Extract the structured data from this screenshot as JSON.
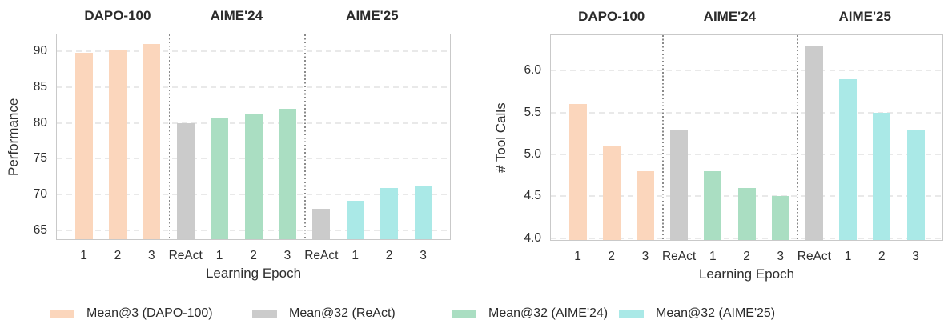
{
  "series_colors": {
    "dapo": "#fbd6bc",
    "react": "#cbcbcb",
    "aime24": "#aadec2",
    "aime25": "#aae9e7"
  },
  "legend": {
    "items": [
      {
        "label": "Mean@3 (DAPO-100)",
        "series": "dapo"
      },
      {
        "label": "Mean@32 (ReAct)",
        "series": "react"
      },
      {
        "label": "Mean@32 (AIME'24)",
        "series": "aime24"
      },
      {
        "label": "Mean@32 (AIME'25)",
        "series": "aime25"
      }
    ]
  },
  "chart_data": [
    {
      "type": "bar",
      "ylabel": "Performance",
      "xlabel": "Learning Epoch",
      "ylim": [
        63.8,
        92.3
      ],
      "ytick_values": [
        65,
        70,
        75,
        80,
        85,
        90
      ],
      "ytick_labels": [
        "65",
        "70",
        "75",
        "80",
        "85",
        "90"
      ],
      "grid": "horizontal-dashed",
      "legend_position": "bottom",
      "groups": [
        {
          "title": "DAPO-100"
        },
        {
          "title": "AIME'24"
        },
        {
          "title": "AIME'25"
        }
      ],
      "separators_after_slot": [
        2,
        6
      ],
      "bars": [
        {
          "group": 0,
          "label": "1",
          "series": "dapo",
          "value": 89.7
        },
        {
          "group": 0,
          "label": "2",
          "series": "dapo",
          "value": 90.1
        },
        {
          "group": 0,
          "label": "3",
          "series": "dapo",
          "value": 91.0
        },
        {
          "group": 1,
          "label": "ReAct",
          "series": "react",
          "value": 80.0
        },
        {
          "group": 1,
          "label": "1",
          "series": "aime24",
          "value": 80.7
        },
        {
          "group": 1,
          "label": "2",
          "series": "aime24",
          "value": 81.2
        },
        {
          "group": 1,
          "label": "3",
          "series": "aime24",
          "value": 81.9
        },
        {
          "group": 2,
          "label": "ReAct",
          "series": "react",
          "value": 68.0
        },
        {
          "group": 2,
          "label": "1",
          "series": "aime25",
          "value": 69.1
        },
        {
          "group": 2,
          "label": "2",
          "series": "aime25",
          "value": 70.9
        },
        {
          "group": 2,
          "label": "3",
          "series": "aime25",
          "value": 71.2
        }
      ]
    },
    {
      "type": "bar",
      "ylabel": "# Tool Calls",
      "xlabel": "Learning Epoch",
      "ylim": [
        3.98,
        6.42
      ],
      "ytick_values": [
        4.0,
        4.5,
        5.0,
        5.5,
        6.0
      ],
      "ytick_labels": [
        "4.0",
        "4.5",
        "5.0",
        "5.5",
        "6.0"
      ],
      "grid": "horizontal-dashed",
      "legend_position": "bottom",
      "groups": [
        {
          "title": "DAPO-100"
        },
        {
          "title": "AIME'24"
        },
        {
          "title": "AIME'25"
        }
      ],
      "separators_after_slot": [
        2,
        6
      ],
      "bars": [
        {
          "group": 0,
          "label": "1",
          "series": "dapo",
          "value": 5.6
        },
        {
          "group": 0,
          "label": "2",
          "series": "dapo",
          "value": 5.1
        },
        {
          "group": 0,
          "label": "3",
          "series": "dapo",
          "value": 4.8
        },
        {
          "group": 1,
          "label": "ReAct",
          "series": "react",
          "value": 5.3
        },
        {
          "group": 1,
          "label": "1",
          "series": "aime24",
          "value": 4.8
        },
        {
          "group": 1,
          "label": "2",
          "series": "aime24",
          "value": 4.6
        },
        {
          "group": 1,
          "label": "3",
          "series": "aime24",
          "value": 4.5
        },
        {
          "group": 2,
          "label": "ReAct",
          "series": "react",
          "value": 6.3
        },
        {
          "group": 2,
          "label": "1",
          "series": "aime25",
          "value": 5.9
        },
        {
          "group": 2,
          "label": "2",
          "series": "aime25",
          "value": 5.5
        },
        {
          "group": 2,
          "label": "3",
          "series": "aime25",
          "value": 5.3
        }
      ]
    }
  ]
}
